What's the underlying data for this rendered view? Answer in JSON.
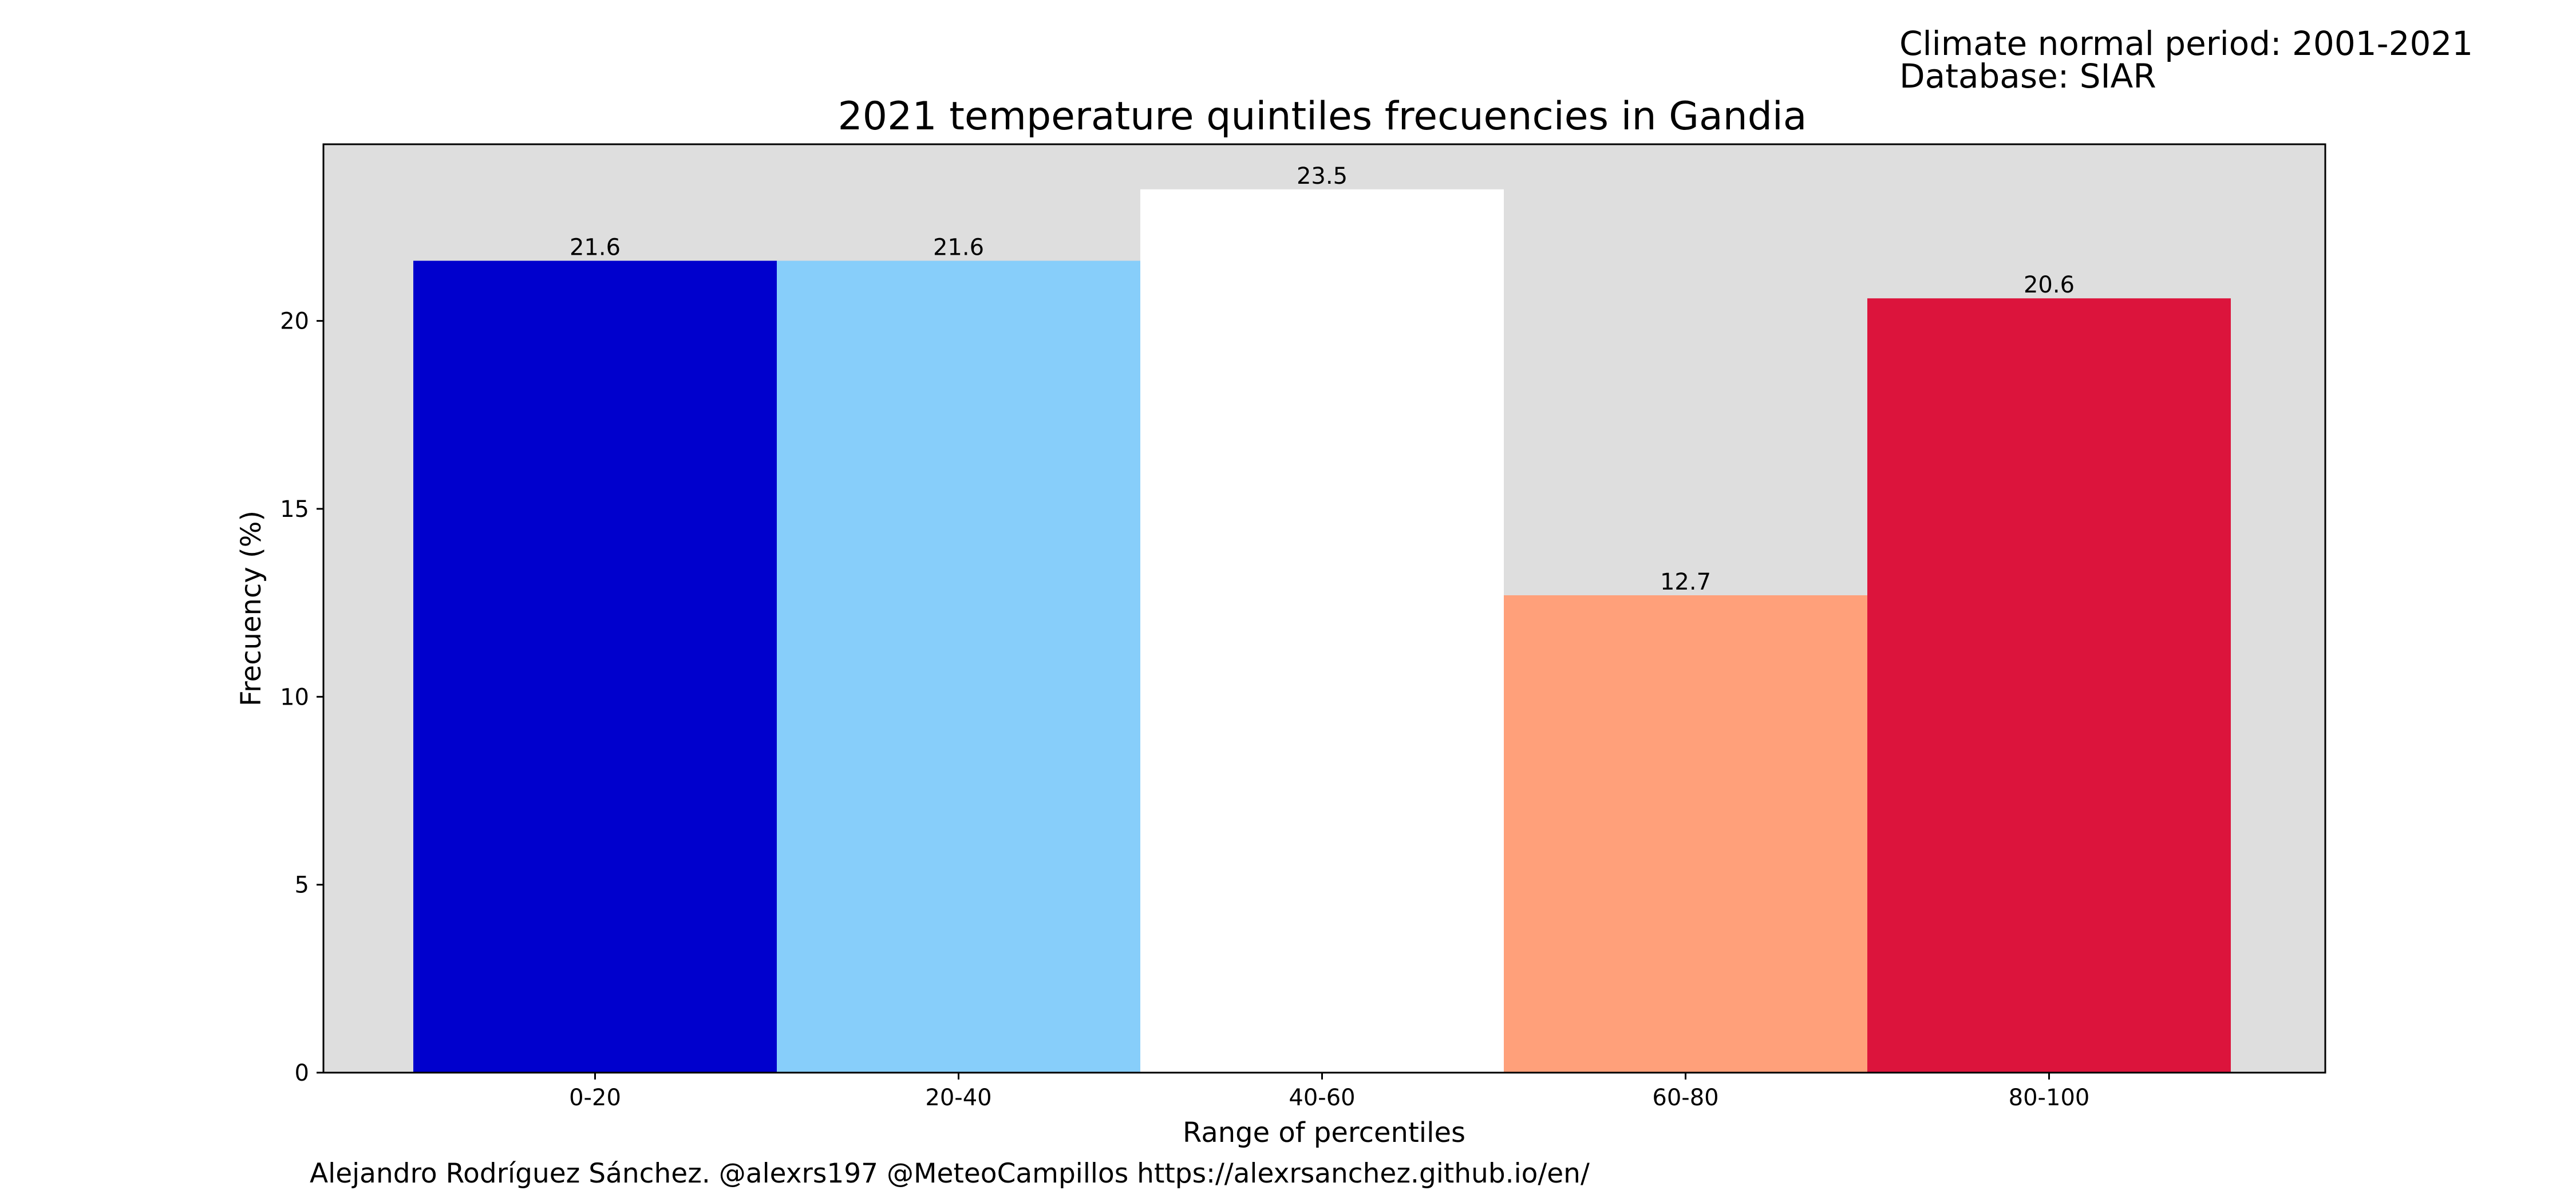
{
  "info": {
    "period": "Climate normal period: 2001-2021",
    "database": "Database: SIAR"
  },
  "credits": "Alejandro Rodríguez Sánchez. @alexrs197 @MeteoCampillos   https://alexrsanchez.github.io/en/",
  "colors": {
    "plot_background": "#dedede",
    "bars": [
      "#0000cd",
      "#87cefa",
      "#ffffff",
      "#ffa07a",
      "#dc143c"
    ]
  },
  "chart_data": {
    "type": "bar",
    "title": "2021 temperature quintiles frecuencies in Gandia",
    "xlabel": "Range of percentiles",
    "ylabel": "Frecuency (%)",
    "categories": [
      "0-20",
      "20-40",
      "40-60",
      "60-80",
      "80-100"
    ],
    "values": [
      21.6,
      21.6,
      23.5,
      12.7,
      20.6
    ],
    "data_labels": [
      "21.6",
      "21.6",
      "23.5",
      "12.7",
      "20.6"
    ],
    "ylim": [
      0,
      24.7
    ],
    "yticks": [
      0,
      5,
      10,
      15,
      20
    ],
    "grid": false,
    "legend": false
  }
}
